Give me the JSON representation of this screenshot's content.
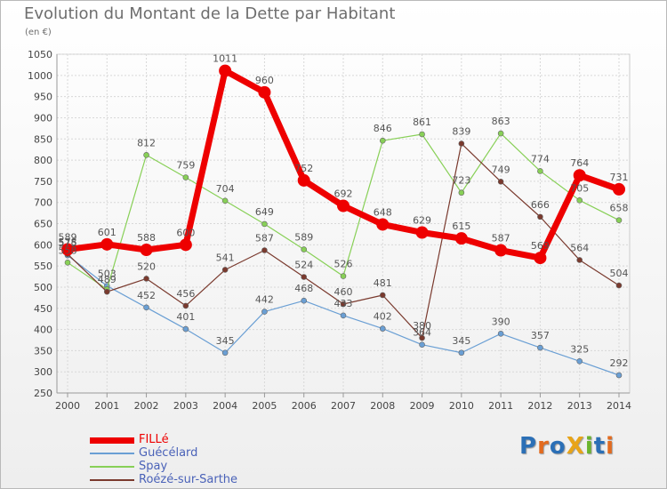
{
  "title": "Evolution du Montant de la Dette par Habitant",
  "subtitle": "(en €)",
  "logo": {
    "text": "ProXiti",
    "letters": [
      "P",
      "r",
      "o",
      "X",
      "i",
      "t",
      "i"
    ],
    "colors": [
      "#2b6fb6",
      "#e36b1f",
      "#2b6fb6",
      "#e8a418",
      "#6ab42d",
      "#2b6fb6",
      "#e36b1f"
    ]
  },
  "chart_data": {
    "type": "line",
    "categories": [
      "2000",
      "2001",
      "2002",
      "2003",
      "2004",
      "2005",
      "2006",
      "2007",
      "2008",
      "2009",
      "2010",
      "2011",
      "2012",
      "2013",
      "2014"
    ],
    "ylim": [
      250,
      1050
    ],
    "yticks": [
      250,
      300,
      350,
      400,
      450,
      500,
      550,
      600,
      650,
      700,
      750,
      800,
      850,
      900,
      950,
      1000,
      1050
    ],
    "ylabel": "",
    "xlabel": "",
    "grid": true,
    "legend_position": "bottom-left",
    "series": [
      {
        "name": "Guécélard",
        "color": "#6a9fd4",
        "width": 1.2,
        "values": [
          575,
          503,
          452,
          401,
          345,
          442,
          468,
          433,
          402,
          364,
          345,
          390,
          357,
          325,
          292
        ],
        "labels": [
          "575",
          "503",
          "452",
          "401",
          "345",
          "442",
          "468",
          "433",
          "402",
          "364",
          "345",
          "390",
          "357",
          "325",
          "292"
        ]
      },
      {
        "name": "Spay",
        "color": "#88d057",
        "width": 1.2,
        "values": [
          558,
          495,
          812,
          759,
          704,
          649,
          589,
          526,
          846,
          861,
          723,
          863,
          774,
          705,
          658
        ],
        "labels": [
          "558",
          "",
          "812",
          "759",
          "704",
          "649",
          "589",
          "526",
          "846",
          "861",
          "723",
          "863",
          "774",
          "705",
          "658"
        ]
      },
      {
        "name": "Roézé-sur-Sarthe",
        "color": "#7a3a2e",
        "width": 1.2,
        "values": [
          578,
          489,
          520,
          456,
          541,
          587,
          524,
          460,
          481,
          380,
          839,
          749,
          666,
          564,
          504
        ],
        "labels": [
          "578",
          "489",
          "520",
          "456",
          "541",
          "587",
          "524",
          "460",
          "481",
          "380",
          "839",
          "749",
          "666",
          "564",
          "504"
        ]
      },
      {
        "name": "FILLé",
        "color": "#ee0000",
        "width": 7,
        "values": [
          589,
          601,
          588,
          600,
          1011,
          960,
          752,
          692,
          648,
          629,
          615,
          587,
          569,
          764,
          731
        ],
        "labels": [
          "589",
          "601",
          "588",
          "600",
          "1011",
          "960",
          "752",
          "692",
          "648",
          "629",
          "615",
          "587",
          "569",
          "764",
          "731"
        ]
      }
    ]
  }
}
